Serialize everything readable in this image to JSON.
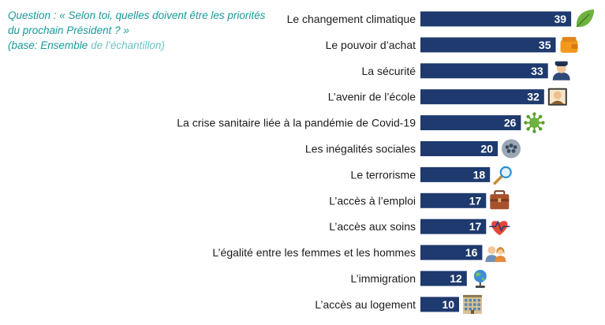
{
  "question": {
    "line1": "Question : « Selon toi, quelles doivent être les priorités",
    "line2": "du prochain Président ? »",
    "base_prefix": "(base: Ensemble",
    "base_suffix": " de l’échantillon)"
  },
  "colors": {
    "bar": "#1e3a6e",
    "question_text": "#1a9a9a",
    "value_text": "#ffffff"
  },
  "chart_data": {
    "type": "bar",
    "orientation": "horizontal",
    "categories": [
      "Le changement climatique",
      "Le pouvoir d’achat",
      "La sécurité",
      "L’avenir de l’école",
      "La crise sanitaire liée à la pandémie de Covid-19",
      "Les inégalités sociales",
      "Le terrorisme",
      "L’accès à l’emploi",
      "L’accès aux soins",
      "L’égalité entre les femmes et les hommes",
      "L’immigration",
      "L’accès au logement"
    ],
    "values": [
      39,
      35,
      33,
      32,
      26,
      20,
      18,
      17,
      17,
      16,
      12,
      10
    ],
    "icons": [
      "leaf-icon",
      "wallet-icon",
      "police-officer-icon",
      "teacher-icon",
      "virus-icon",
      "crowd-icon",
      "magnifier-icon",
      "briefcase-icon",
      "heart-pulse-icon",
      "couple-icon",
      "globe-icon",
      "building-icon"
    ],
    "grid": false,
    "legend": "none"
  }
}
